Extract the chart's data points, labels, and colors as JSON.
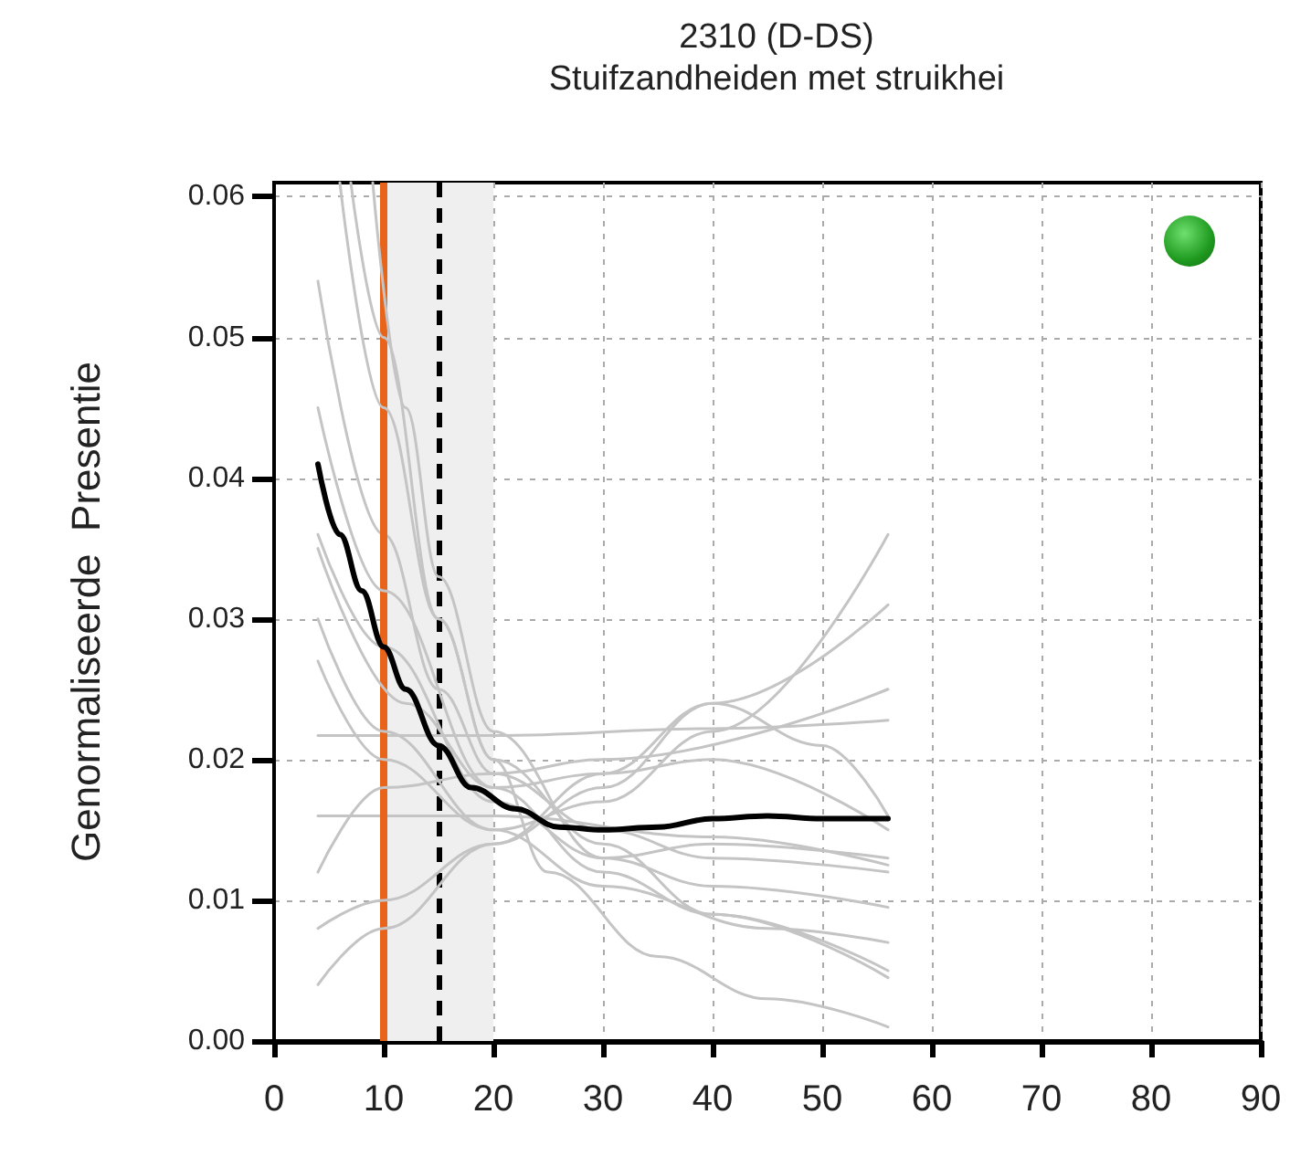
{
  "chart_data": {
    "type": "line",
    "title": "2310 (D-DS)",
    "subtitle": "Stuifzandheiden met struikhei",
    "ylabel": "Genormaliseerde  Presentie",
    "xlim": [
      0,
      90
    ],
    "xticks": [
      0,
      10,
      20,
      30,
      40,
      50,
      60,
      70,
      80,
      90
    ],
    "ylim": [
      0,
      0.061
    ],
    "yticks": [
      {
        "value": 0,
        "label": "0.00"
      },
      {
        "value": 0.01,
        "label": "0.01"
      },
      {
        "value": 0.02,
        "label": "0.02"
      },
      {
        "value": 0.03,
        "label": "0.03"
      },
      {
        "value": 0.04,
        "label": "0.04"
      },
      {
        "value": 0.05,
        "label": "0.05"
      },
      {
        "value": 0.06,
        "label": "0.06"
      }
    ],
    "grid": true,
    "bands": [
      {
        "axis": "x",
        "from": 10,
        "to": 20,
        "color": "#efefef"
      }
    ],
    "ref_lines": [
      {
        "axis": "x",
        "value": 10,
        "color": "#e8641b",
        "line_style": "solid"
      },
      {
        "axis": "x",
        "value": 15,
        "color": "#000000",
        "line_style": "dashed"
      }
    ],
    "series": [
      {
        "color": "#c4c4c4",
        "x": [
          4,
          20,
          40,
          56
        ],
        "values": [
          0.0217,
          0.0217,
          0.0222,
          0.0228
        ]
      },
      {
        "color": "#c4c4c4",
        "x": [
          4,
          20,
          40,
          56
        ],
        "values": [
          0.016,
          0.016,
          0.0145,
          0.0125
        ]
      },
      {
        "color": "#c4c4c4",
        "x": [
          4,
          10,
          15,
          20,
          30,
          40,
          56
        ],
        "values": [
          0.054,
          0.036,
          0.025,
          0.019,
          0.015,
          0.013,
          0.012
        ]
      },
      {
        "color": "#c4c4c4",
        "x": [
          4,
          10,
          20,
          30,
          40,
          56
        ],
        "values": [
          0.045,
          0.032,
          0.018,
          0.012,
          0.009,
          0.005
        ]
      },
      {
        "color": "#c4c4c4",
        "x": [
          4,
          10,
          20,
          30,
          40,
          56
        ],
        "values": [
          0.036,
          0.028,
          0.017,
          0.013,
          0.014,
          0.013
        ]
      },
      {
        "color": "#c4c4c4",
        "x": [
          4,
          10,
          20,
          30,
          45,
          56
        ],
        "values": [
          0.03,
          0.022,
          0.015,
          0.011,
          0.008,
          0.007
        ]
      },
      {
        "color": "#c4c4c4",
        "x": [
          4,
          10,
          20,
          30,
          40,
          56
        ],
        "values": [
          0.027,
          0.02,
          0.015,
          0.017,
          0.022,
          0.036
        ]
      },
      {
        "color": "#c4c4c4",
        "x": [
          4,
          10,
          20,
          30,
          56
        ],
        "values": [
          0.012,
          0.018,
          0.019,
          0.02,
          0.025
        ]
      },
      {
        "color": "#c4c4c4",
        "x": [
          4,
          10,
          20,
          30,
          40,
          56
        ],
        "values": [
          0.008,
          0.01,
          0.014,
          0.018,
          0.024,
          0.031
        ]
      },
      {
        "color": "#c4c4c4",
        "x": [
          4,
          10,
          20,
          30,
          40,
          50,
          56
        ],
        "values": [
          0.004,
          0.008,
          0.014,
          0.019,
          0.024,
          0.021,
          0.016
        ]
      },
      {
        "color": "#c4c4c4",
        "x": [
          6,
          10,
          15,
          20,
          25,
          35,
          45,
          56
        ],
        "values": [
          0.061,
          0.045,
          0.03,
          0.02,
          0.012,
          0.006,
          0.003,
          0.001
        ]
      },
      {
        "color": "#c4c4c4",
        "x": [
          9,
          12,
          15,
          20,
          30,
          40,
          56
        ],
        "values": [
          0.061,
          0.045,
          0.033,
          0.022,
          0.013,
          0.011,
          0.0095
        ]
      },
      {
        "color": "#c4c4c4",
        "x": [
          7,
          10,
          15,
          20,
          30,
          40,
          56
        ],
        "values": [
          0.061,
          0.05,
          0.03,
          0.02,
          0.014,
          0.009,
          0.0045
        ]
      },
      {
        "color": "#c4c4c4",
        "x": [
          4,
          12,
          20,
          30,
          40,
          56
        ],
        "values": [
          0.035,
          0.024,
          0.018,
          0.019,
          0.02,
          0.015
        ]
      },
      {
        "color": "#000000",
        "x": [
          4,
          6,
          8,
          10,
          12,
          15,
          18,
          22,
          26,
          30,
          35,
          40,
          45,
          50,
          56
        ],
        "values": [
          0.041,
          0.036,
          0.032,
          0.028,
          0.025,
          0.021,
          0.018,
          0.0165,
          0.0152,
          0.015,
          0.0152,
          0.0158,
          0.016,
          0.0158,
          0.0158
        ]
      }
    ]
  }
}
